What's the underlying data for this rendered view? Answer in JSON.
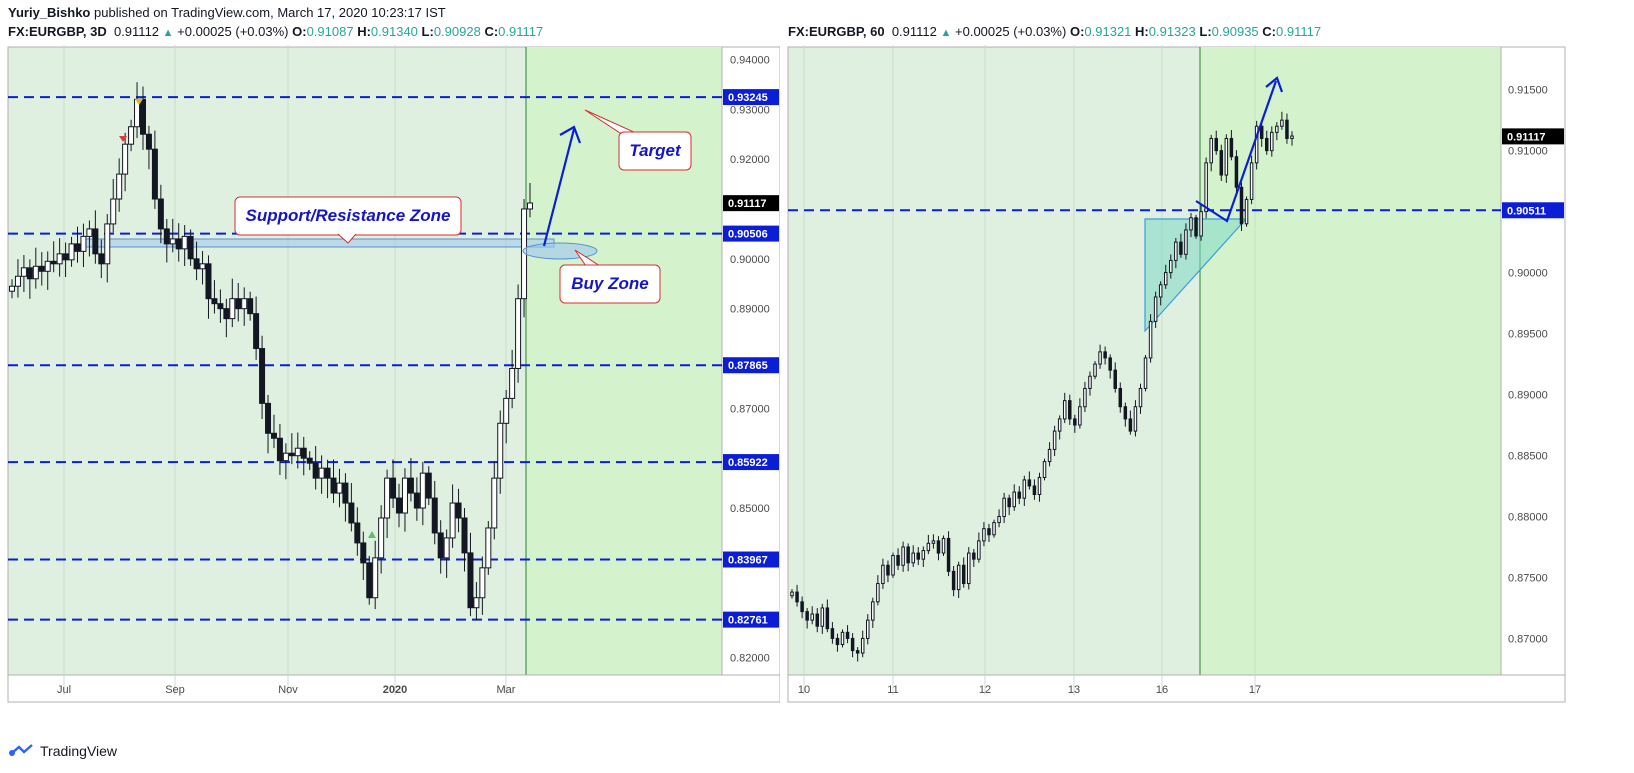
{
  "header": {
    "author": "Yuriy_Bishko",
    "published": "published on TradingView.com, March 17, 2020 10:23:17 IST"
  },
  "left_chart": {
    "symbol": "FX:EURGBP, 3D",
    "price": "0.91112",
    "change": "+0.00025 (+0.03%)",
    "o_label": "O:",
    "o": "0.91087",
    "h_label": "H:",
    "h": "0.91340",
    "l_label": "L:",
    "l": "0.90928",
    "c_label": "C:",
    "c": "0.91117",
    "annotations": {
      "target": "Target",
      "zone": "Support/Resistance Zone",
      "buy": "Buy Zone"
    }
  },
  "right_chart": {
    "symbol": "FX:EURGBP, 60",
    "price": "0.91112",
    "change": "+0.00025 (+0.03%)",
    "o_label": "O:",
    "o": "0.91321",
    "h_label": "H:",
    "h": "0.91323",
    "l_label": "L:",
    "l": "0.90935",
    "c_label": "C:",
    "c": "0.91117"
  },
  "footer": {
    "brand": "TradingView"
  },
  "colors": {
    "bg_fill": "#e0f0e0",
    "future_fill": "#d4f3cc",
    "level_line": "#0b1ed6",
    "label_bg": "#0b1ed6",
    "price_tag_bg": "#000000",
    "up_candle": "#ffffff",
    "down_candle": "#131722",
    "axis_text": "#4a4a4a",
    "note_border": "#d32f2f",
    "note_text": "#1515c8"
  },
  "chart_data": [
    {
      "type": "candlestick",
      "name": "FX:EURGBP, 3D",
      "x_ticks": [
        "Jul",
        "Sep",
        "Nov",
        "2020",
        "Mar"
      ],
      "y_ticks": [
        "0.94000",
        "0.93000",
        "0.92000",
        "0.90000",
        "0.89000",
        "0.87000",
        "0.85000",
        "0.82000"
      ],
      "ylim": [
        0.8165,
        0.9425
      ],
      "levels": [
        0.93245,
        0.90506,
        0.87865,
        0.85922,
        0.83967,
        0.82761
      ],
      "level_labels": [
        "0.93245",
        "0.90506",
        "0.87865",
        "0.85922",
        "0.83967",
        "0.82761"
      ],
      "last_price": 0.91117,
      "last_price_label": "0.91117",
      "closes": [
        0.8945,
        0.8965,
        0.8982,
        0.896,
        0.8985,
        0.8975,
        0.8995,
        0.899,
        0.901,
        0.8998,
        0.903,
        0.9015,
        0.9045,
        0.906,
        0.901,
        0.899,
        0.907,
        0.912,
        0.917,
        0.923,
        0.9265,
        0.932,
        0.925,
        0.922,
        0.912,
        0.906,
        0.903,
        0.904,
        0.902,
        0.9045,
        0.9,
        0.898,
        0.899,
        0.892,
        0.891,
        0.89,
        0.888,
        0.892,
        0.89,
        0.892,
        0.889,
        0.882,
        0.871,
        0.865,
        0.864,
        0.8595,
        0.861,
        0.8605,
        0.862,
        0.86,
        0.859,
        0.856,
        0.858,
        0.856,
        0.853,
        0.855,
        0.851,
        0.847,
        0.843,
        0.839,
        0.832,
        0.84,
        0.848,
        0.856,
        0.852,
        0.849,
        0.856,
        0.853,
        0.85,
        0.857,
        0.852,
        0.845,
        0.84,
        0.844,
        0.851,
        0.848,
        0.841,
        0.83,
        0.832,
        0.838,
        0.846,
        0.856,
        0.867,
        0.872,
        0.878,
        0.892,
        0.91,
        0.9112
      ]
    },
    {
      "type": "candlestick",
      "name": "FX:EURGBP, 60",
      "x_ticks": [
        "10",
        "11",
        "12",
        "13",
        "16",
        "17"
      ],
      "y_ticks": [
        "0.91500",
        "0.91000",
        "0.90000",
        "0.89500",
        "0.89000",
        "0.88500",
        "0.88000",
        "0.87500",
        "0.87000"
      ],
      "ylim": [
        0.867,
        0.9185
      ],
      "levels": [
        0.90511
      ],
      "level_labels": [
        "0.90511"
      ],
      "last_price": 0.91117,
      "last_price_label": "0.91117",
      "closes": [
        0.8738,
        0.873,
        0.8722,
        0.8715,
        0.872,
        0.871,
        0.8725,
        0.8708,
        0.87,
        0.8695,
        0.8705,
        0.87,
        0.869,
        0.8688,
        0.87,
        0.8715,
        0.873,
        0.8745,
        0.876,
        0.8752,
        0.8768,
        0.876,
        0.8775,
        0.8762,
        0.877,
        0.8765,
        0.8772,
        0.8778,
        0.878,
        0.877,
        0.8782,
        0.8755,
        0.874,
        0.876,
        0.8745,
        0.877,
        0.8765,
        0.878,
        0.879,
        0.8785,
        0.8795,
        0.88,
        0.8815,
        0.8808,
        0.882,
        0.8815,
        0.883,
        0.8825,
        0.8818,
        0.8832,
        0.8845,
        0.8855,
        0.887,
        0.888,
        0.8895,
        0.888,
        0.8875,
        0.889,
        0.8905,
        0.8915,
        0.8925,
        0.8935,
        0.893,
        0.892,
        0.8905,
        0.889,
        0.888,
        0.887,
        0.889,
        0.8905,
        0.893,
        0.896,
        0.898,
        0.899,
        0.9,
        0.901,
        0.9025,
        0.9015,
        0.9035,
        0.9045,
        0.903,
        0.905,
        0.909,
        0.911,
        0.91,
        0.908,
        0.911,
        0.9095,
        0.907,
        0.904,
        0.906,
        0.909,
        0.912,
        0.911,
        0.91,
        0.9115,
        0.912,
        0.9125,
        0.911,
        0.9112
      ]
    }
  ]
}
